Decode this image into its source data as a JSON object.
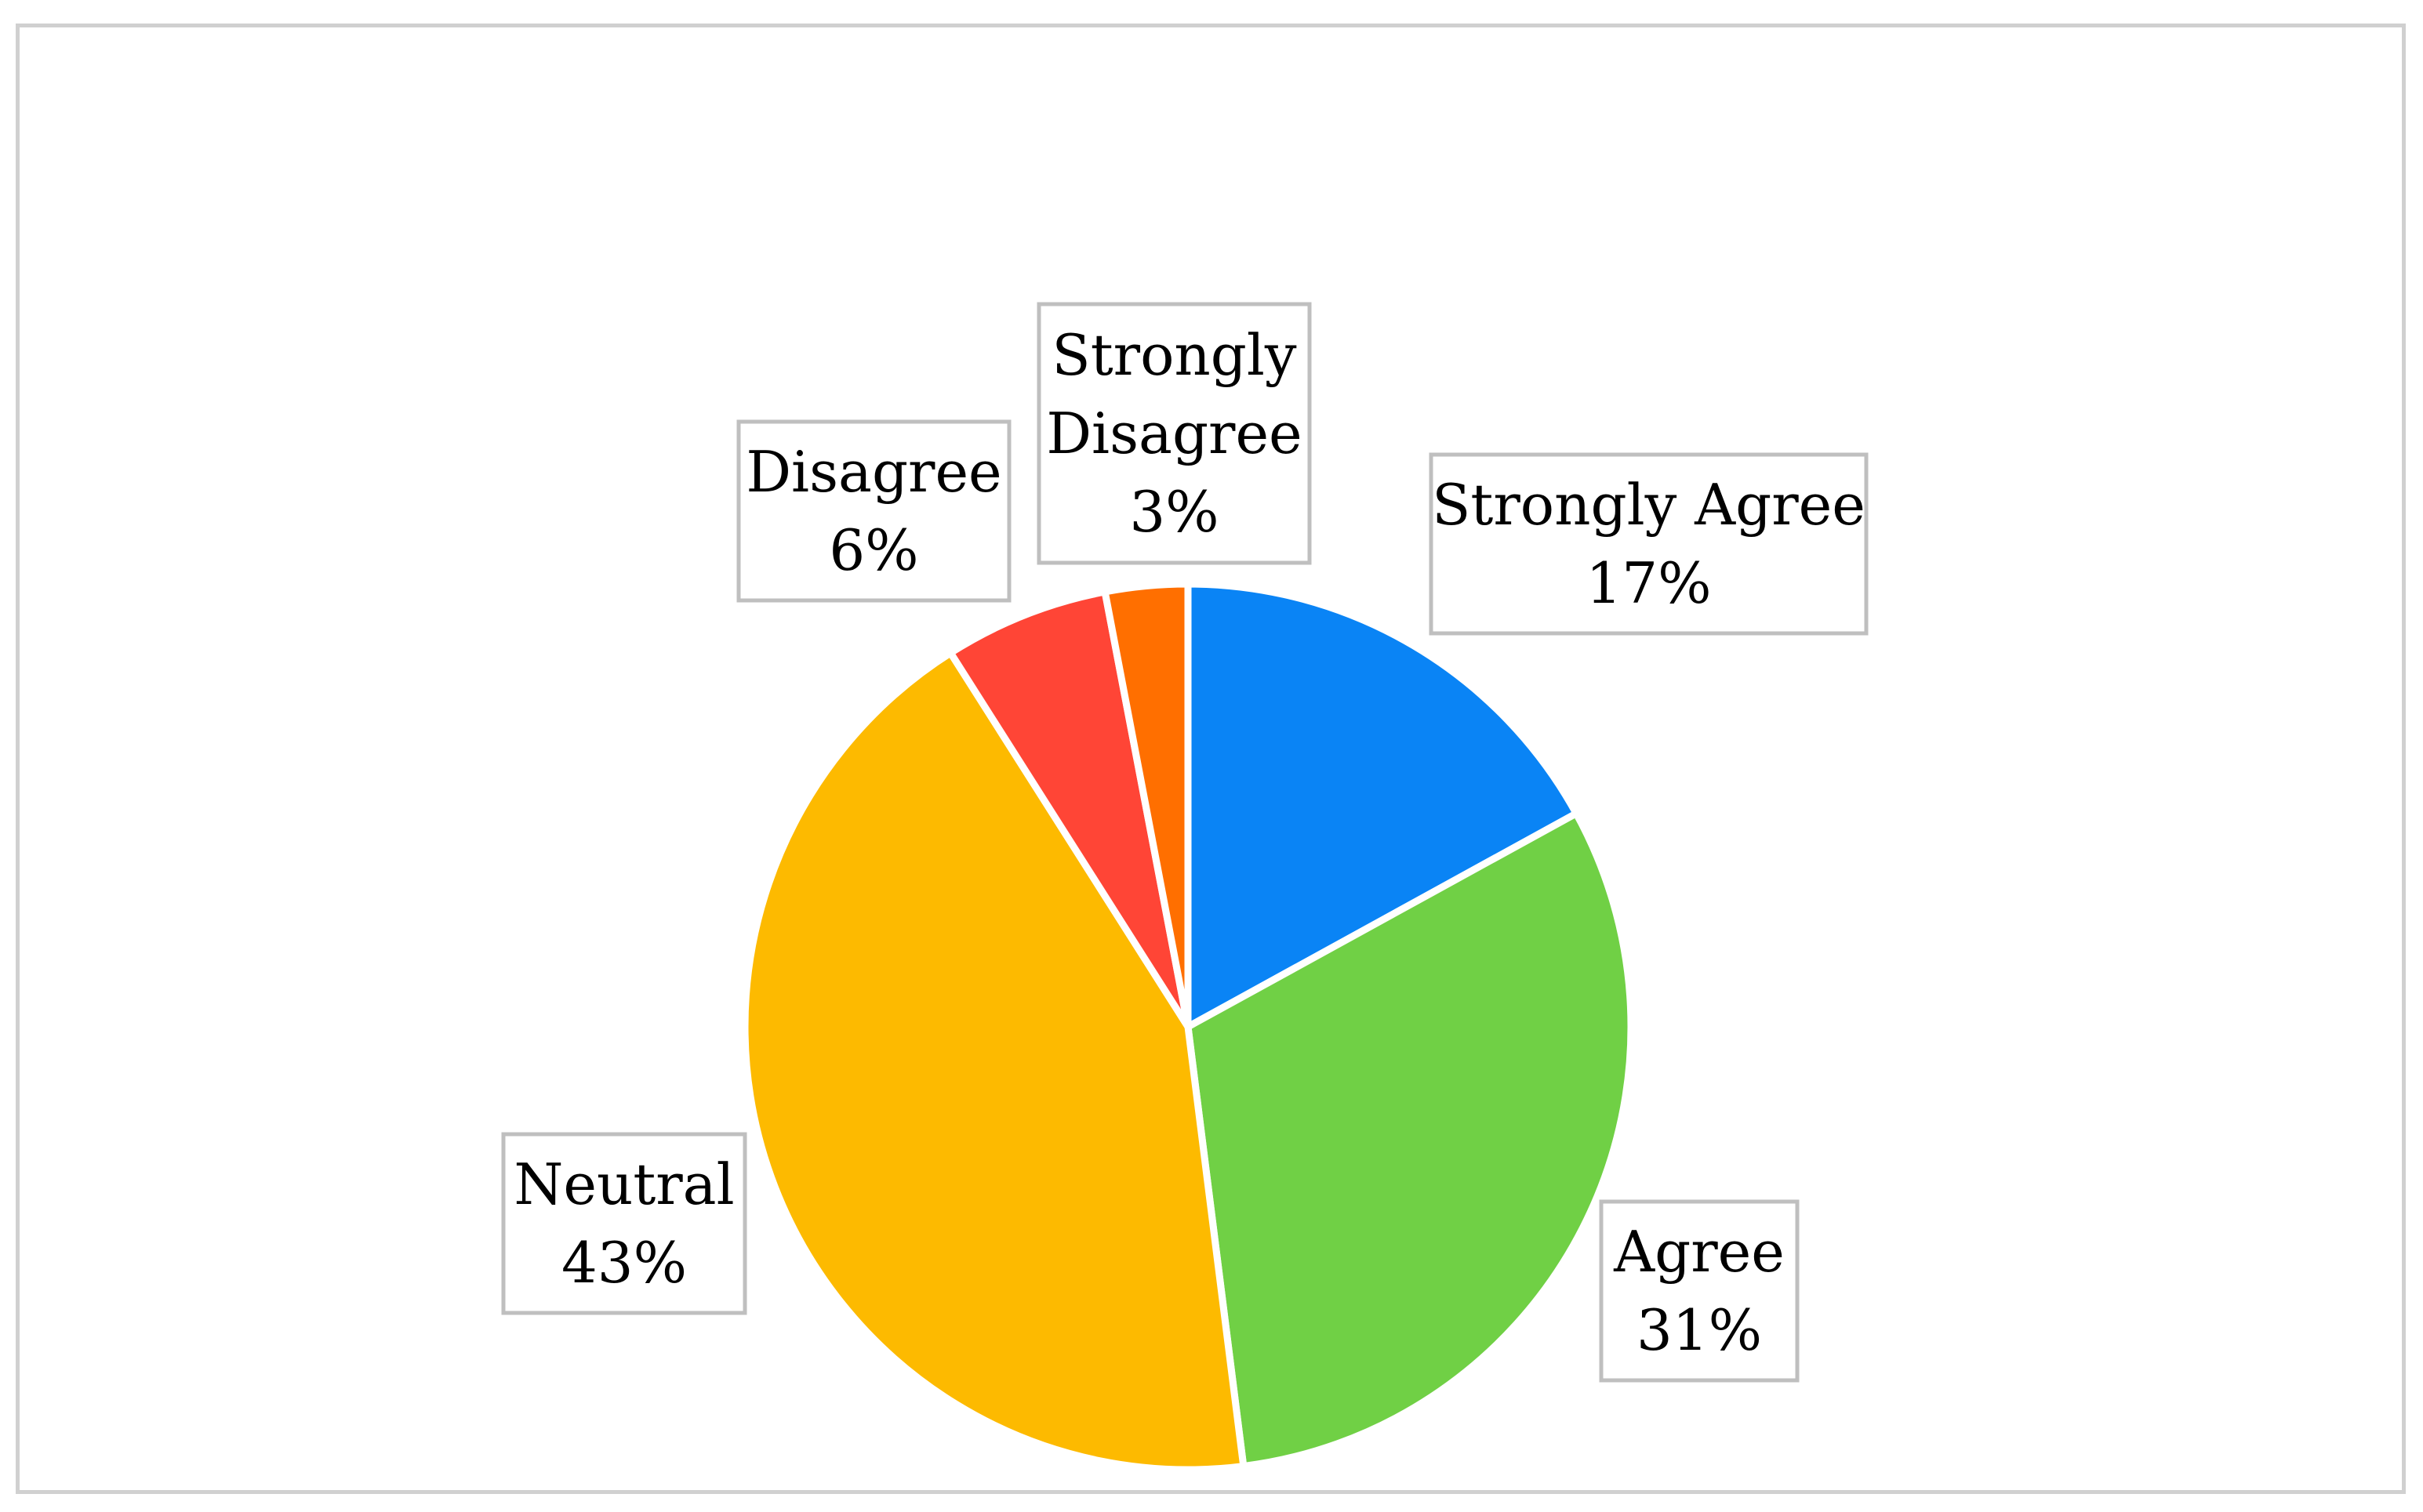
{
  "chart_data": {
    "type": "pie",
    "start_angle_deg": 0,
    "direction": "clockwise",
    "slices": [
      {
        "name": "Strongly Agree",
        "value": 17,
        "label_lines": [
          "Strongly Agree",
          "17%"
        ],
        "color": "#0A84F5"
      },
      {
        "name": "Agree",
        "value": 31,
        "label_lines": [
          "Agree",
          "31%"
        ],
        "color": "#70D045"
      },
      {
        "name": "Neutral",
        "value": 43,
        "label_lines": [
          "Neutral",
          "43%"
        ],
        "color": "#FDBA00"
      },
      {
        "name": "Disagree",
        "value": 6,
        "label_lines": [
          "Disagree",
          "6%"
        ],
        "color": "#FF4536"
      },
      {
        "name": "Strongly Disagree",
        "value": 3,
        "label_lines": [
          "Strongly",
          "Disagree",
          "3%"
        ],
        "color": "#FF6F00"
      }
    ],
    "legend": "none",
    "data_labels": "boxed callouts outside slices"
  }
}
